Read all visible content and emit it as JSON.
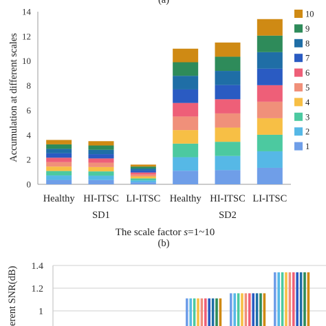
{
  "header_caption": "(a)",
  "colors": [
    "#6f9ee8",
    "#56b8e6",
    "#4cc9a0",
    "#f7bf45",
    "#f0907a",
    "#ee5f78",
    "#2a5bc2",
    "#1f6ea6",
    "#2e8b5a",
    "#cf8a14"
  ],
  "chart_data": [
    {
      "type": "bar",
      "stacked": true,
      "caption": "(b)",
      "categories": [
        "Healthy",
        "HI-ITSC",
        "LI-ITSC",
        "Healthy",
        "HI-ITSC",
        "LI-ITSC"
      ],
      "groups": [
        {
          "label": "SD1",
          "categories": [
            "Healthy",
            "HI-ITSC",
            "LI-ITSC"
          ]
        },
        {
          "label": "SD2",
          "categories": [
            "Healthy",
            "HI-ITSC",
            "LI-ITSC"
          ]
        }
      ],
      "series": [
        {
          "name": "1",
          "values": [
            0.36,
            0.35,
            0.16,
            1.1,
            1.15,
            1.34
          ]
        },
        {
          "name": "2",
          "values": [
            0.36,
            0.35,
            0.16,
            1.1,
            1.15,
            1.34
          ]
        },
        {
          "name": "3",
          "values": [
            0.36,
            0.35,
            0.16,
            1.1,
            1.15,
            1.34
          ]
        },
        {
          "name": "4",
          "values": [
            0.36,
            0.35,
            0.16,
            1.1,
            1.15,
            1.34
          ]
        },
        {
          "name": "5",
          "values": [
            0.36,
            0.35,
            0.16,
            1.1,
            1.15,
            1.34
          ]
        },
        {
          "name": "6",
          "values": [
            0.36,
            0.35,
            0.16,
            1.1,
            1.15,
            1.34
          ]
        },
        {
          "name": "7",
          "values": [
            0.36,
            0.35,
            0.16,
            1.1,
            1.15,
            1.34
          ]
        },
        {
          "name": "8",
          "values": [
            0.36,
            0.35,
            0.16,
            1.1,
            1.15,
            1.34
          ]
        },
        {
          "name": "9",
          "values": [
            0.36,
            0.35,
            0.16,
            1.1,
            1.15,
            1.34
          ]
        },
        {
          "name": "10",
          "values": [
            0.36,
            0.35,
            0.16,
            1.1,
            1.15,
            1.34
          ]
        }
      ],
      "ylabel": "Accumulation at different scales",
      "xlabel_prefix": "The scale factor ",
      "xlabel_var": "s",
      "xlabel_suffix": "=1~10",
      "ylim": [
        0,
        14
      ],
      "yticks": [
        0,
        2,
        4,
        6,
        8,
        10,
        12,
        14
      ],
      "grid": false,
      "legend": "right"
    },
    {
      "type": "bar",
      "ylabel_fragment": "erent SNR(dB)",
      "ylim": [
        1.0,
        1.4
      ],
      "yticks": [
        "1",
        "1.2",
        "1.4"
      ],
      "series_values": [
        1.11,
        1.155,
        1.34
      ],
      "grid": true
    }
  ]
}
